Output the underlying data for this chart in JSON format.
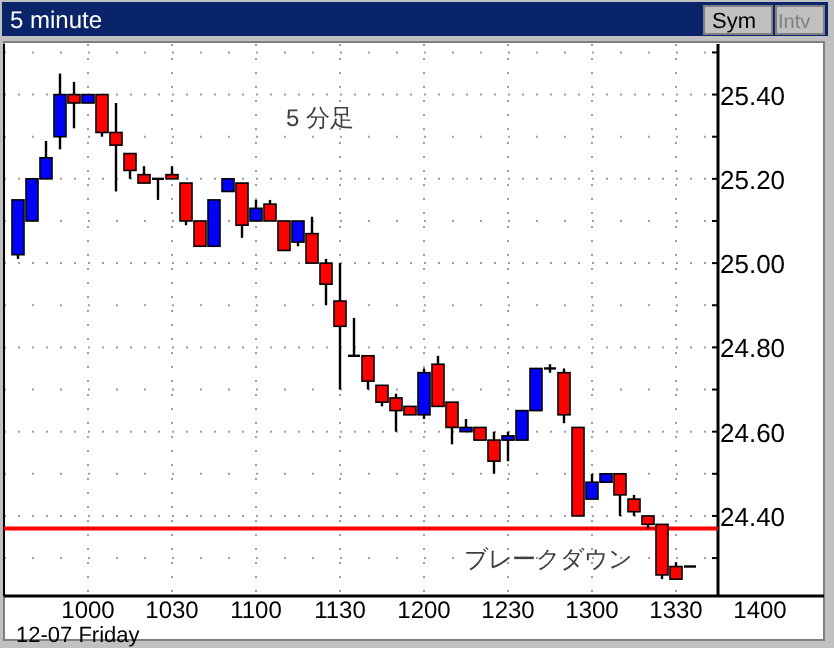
{
  "chart_data": {
    "type": "candlestick",
    "title": "5 minute",
    "categories": [
      null,
      null,
      null,
      null,
      null,
      "1000",
      null,
      null,
      null,
      null,
      null,
      "1030",
      null,
      null,
      null,
      null,
      null,
      "1100",
      null,
      null,
      null,
      null,
      null,
      "1130",
      null,
      null,
      null,
      null,
      null,
      "1200",
      null,
      null,
      null,
      null,
      null,
      "1230",
      null,
      null,
      null,
      null,
      null,
      "1300",
      null,
      null,
      null,
      null,
      null,
      "1330",
      null,
      null,
      null,
      null,
      null,
      "1400"
    ],
    "ohlc": [
      [
        25.02,
        25.15,
        25.01,
        25.15
      ],
      [
        25.1,
        25.2,
        25.1,
        25.2
      ],
      [
        25.2,
        25.29,
        25.2,
        25.25
      ],
      [
        25.3,
        25.45,
        25.27,
        25.4
      ],
      [
        25.4,
        25.43,
        25.32,
        25.38
      ],
      [
        25.38,
        25.4,
        25.38,
        25.4
      ],
      [
        25.4,
        25.4,
        25.3,
        25.31
      ],
      [
        25.31,
        25.38,
        25.17,
        25.28
      ],
      [
        25.26,
        25.26,
        25.2,
        25.22
      ],
      [
        25.21,
        25.23,
        25.19,
        25.19
      ],
      [
        25.2,
        25.2,
        25.15,
        25.2
      ],
      [
        25.21,
        25.23,
        25.2,
        25.2
      ],
      [
        25.19,
        25.19,
        25.09,
        25.1
      ],
      [
        25.1,
        25.1,
        25.04,
        25.04
      ],
      [
        25.04,
        25.15,
        25.04,
        25.15
      ],
      [
        25.17,
        25.2,
        25.17,
        25.2
      ],
      [
        25.19,
        25.19,
        25.06,
        25.09
      ],
      [
        25.1,
        25.15,
        25.1,
        25.13
      ],
      [
        25.14,
        25.15,
        25.1,
        25.1
      ],
      [
        25.1,
        25.1,
        25.03,
        25.03
      ],
      [
        25.05,
        25.1,
        25.04,
        25.1
      ],
      [
        25.07,
        25.11,
        25.0,
        25.0
      ],
      [
        25.0,
        25.01,
        24.9,
        24.95
      ],
      [
        24.91,
        25.0,
        24.7,
        24.85
      ],
      [
        24.78,
        24.87,
        24.78,
        24.78
      ],
      [
        24.78,
        24.78,
        24.7,
        24.72
      ],
      [
        24.71,
        24.71,
        24.66,
        24.67
      ],
      [
        24.68,
        24.69,
        24.6,
        24.65
      ],
      [
        24.66,
        24.66,
        24.64,
        24.64
      ],
      [
        24.64,
        24.75,
        24.63,
        24.74
      ],
      [
        24.76,
        24.78,
        24.66,
        24.66
      ],
      [
        24.67,
        24.67,
        24.57,
        24.61
      ],
      [
        24.6,
        24.63,
        24.6,
        24.61
      ],
      [
        24.61,
        24.61,
        24.58,
        24.58
      ],
      [
        24.58,
        24.6,
        24.5,
        24.53
      ],
      [
        24.58,
        24.6,
        24.53,
        24.59
      ],
      [
        24.58,
        24.65,
        24.58,
        24.65
      ],
      [
        24.65,
        24.75,
        24.65,
        24.75
      ],
      [
        24.75,
        24.76,
        24.74,
        24.75
      ],
      [
        24.74,
        24.75,
        24.62,
        24.64
      ],
      [
        24.61,
        24.61,
        24.4,
        24.4
      ],
      [
        24.44,
        24.5,
        24.44,
        24.48
      ],
      [
        24.48,
        24.5,
        24.48,
        24.5
      ],
      [
        24.5,
        24.5,
        24.4,
        24.45
      ],
      [
        24.44,
        24.45,
        24.4,
        24.41
      ],
      [
        24.4,
        24.4,
        24.37,
        24.38
      ],
      [
        24.38,
        24.38,
        24.25,
        24.26
      ],
      [
        24.28,
        24.29,
        24.25,
        24.25
      ],
      [
        24.28,
        24.28,
        24.28,
        24.28
      ],
      null,
      null,
      null,
      null,
      null
    ],
    "colors": [
      "#0000ff",
      "#0000ff",
      "#0000ff",
      "#0000ff",
      "#ff0000",
      "#0000ff",
      "#ff0000",
      "#ff0000",
      "#ff0000",
      "#ff0000",
      "#000000",
      "#ff0000",
      "#ff0000",
      "#ff0000",
      "#0000ff",
      "#0000ff",
      "#ff0000",
      "#0000ff",
      "#ff0000",
      "#ff0000",
      "#0000ff",
      "#ff0000",
      "#ff0000",
      "#ff0000",
      "#000000",
      "#ff0000",
      "#ff0000",
      "#ff0000",
      "#ff0000",
      "#0000ff",
      "#ff0000",
      "#ff0000",
      "#0000ff",
      "#ff0000",
      "#ff0000",
      "#0000ff",
      "#0000ff",
      "#0000ff",
      "#000000",
      "#ff0000",
      "#ff0000",
      "#0000ff",
      "#0000ff",
      "#ff0000",
      "#ff0000",
      "#ff0000",
      "#ff0000",
      "#ff0000",
      "#000000",
      null,
      null,
      null,
      null,
      null
    ],
    "ylim": [
      24.21,
      25.52
    ],
    "yticks": [
      {
        "value": 24.3,
        "label": null
      },
      {
        "value": 24.4,
        "label": "24.40"
      },
      {
        "value": 24.5,
        "label": null
      },
      {
        "value": 24.6,
        "label": "24.60"
      },
      {
        "value": 24.7,
        "label": null
      },
      {
        "value": 24.8,
        "label": "24.80"
      },
      {
        "value": 24.9,
        "label": null
      },
      {
        "value": 25.0,
        "label": "25.00"
      },
      {
        "value": 25.1,
        "label": null
      },
      {
        "value": 25.2,
        "label": "25.20"
      },
      {
        "value": 25.3,
        "label": null
      },
      {
        "value": 25.4,
        "label": "25.40"
      },
      {
        "value": 25.5,
        "label": null
      }
    ],
    "grid": true,
    "ref_lines": [
      {
        "axis": "y",
        "value": 24.37,
        "label": "ブレークダウン",
        "color": "#ff0000"
      }
    ],
    "annotations": [
      "12-07 Friday",
      "5 分足",
      "Sym",
      "Intv"
    ]
  }
}
